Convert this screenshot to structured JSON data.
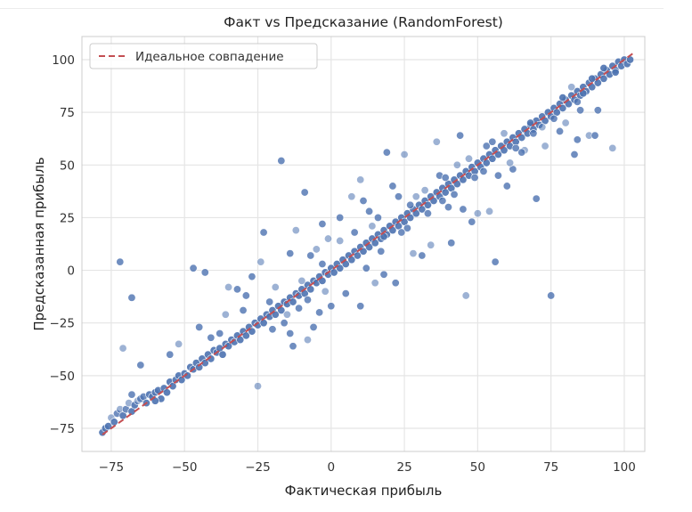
{
  "chart_data": {
    "type": "scatter",
    "title": "Факт vs Предсказание (RandomForest)",
    "xlabel": "Фактическая прибыль",
    "ylabel": "Предсказанная прибыль",
    "xlim": [
      -85,
      107
    ],
    "ylim": [
      -86,
      111
    ],
    "x_ticks": [
      -75,
      -50,
      -25,
      0,
      25,
      50,
      75,
      100
    ],
    "y_ticks": [
      -75,
      -50,
      -25,
      0,
      25,
      50,
      75,
      100
    ],
    "grid": true,
    "legend": {
      "position": "top-left",
      "entries": [
        "Идеальное совпадение"
      ]
    },
    "reference_line": {
      "label": "Идеальное совпадение",
      "from": [
        -78,
        -78
      ],
      "to": [
        103,
        103
      ],
      "style": "dashed",
      "color": "#c44e52"
    },
    "point_color": "#4c72b0",
    "series": [
      {
        "points": [
          [
            -78,
            -77
          ],
          [
            -77,
            -75
          ],
          [
            -76,
            -74
          ],
          [
            -75,
            -70
          ],
          [
            -74,
            -72
          ],
          [
            -73,
            -68
          ],
          [
            -72,
            -66
          ],
          [
            -71,
            -69
          ],
          [
            -70,
            -66
          ],
          [
            -69,
            -63
          ],
          [
            -68,
            -67
          ],
          [
            -67,
            -64
          ],
          [
            -66,
            -62
          ],
          [
            -65,
            -61
          ],
          [
            -64,
            -60
          ],
          [
            -63,
            -63
          ],
          [
            -62,
            -59
          ],
          [
            -61,
            -60
          ],
          [
            -60,
            -58
          ],
          [
            -59,
            -57
          ],
          [
            -58,
            -61
          ],
          [
            -57,
            -56
          ],
          [
            -56,
            -58
          ],
          [
            -55,
            -53
          ],
          [
            -54,
            -55
          ],
          [
            -53,
            -52
          ],
          [
            -52,
            -50
          ],
          [
            -51,
            -52
          ],
          [
            -50,
            -49
          ],
          [
            -49,
            -50
          ],
          [
            -48,
            -46
          ],
          [
            -47,
            -47
          ],
          [
            -46,
            -44
          ],
          [
            -45,
            -46
          ],
          [
            -44,
            -42
          ],
          [
            -43,
            -44
          ],
          [
            -42,
            -40
          ],
          [
            -41,
            -42
          ],
          [
            -40,
            -38
          ],
          [
            -39,
            -39
          ],
          [
            -38,
            -37
          ],
          [
            -37,
            -40
          ],
          [
            -36,
            -35
          ],
          [
            -35,
            -36
          ],
          [
            -34,
            -33
          ],
          [
            -33,
            -34
          ],
          [
            -32,
            -31
          ],
          [
            -31,
            -33
          ],
          [
            -30,
            -29
          ],
          [
            -29,
            -31
          ],
          [
            -28,
            -27
          ],
          [
            -27,
            -29
          ],
          [
            -26,
            -25
          ],
          [
            -25,
            -26
          ],
          [
            -24,
            -23
          ],
          [
            -23,
            -25
          ],
          [
            -22,
            -21
          ],
          [
            -21,
            -22
          ],
          [
            -20,
            -19
          ],
          [
            -19,
            -21
          ],
          [
            -18,
            -17
          ],
          [
            -17,
            -19
          ],
          [
            -16,
            -15
          ],
          [
            -15,
            -16
          ],
          [
            -14,
            -13
          ],
          [
            -13,
            -15
          ],
          [
            -12,
            -11
          ],
          [
            -11,
            -12
          ],
          [
            -10,
            -9
          ],
          [
            -9,
            -11
          ],
          [
            -8,
            -7
          ],
          [
            -7,
            -9
          ],
          [
            -6,
            -5
          ],
          [
            -5,
            -6
          ],
          [
            -4,
            -3
          ],
          [
            -3,
            -5
          ],
          [
            -2,
            -1
          ],
          [
            -1,
            -2
          ],
          [
            0,
            1
          ],
          [
            1,
            -1
          ],
          [
            2,
            3
          ],
          [
            3,
            1
          ],
          [
            4,
            5
          ],
          [
            5,
            3
          ],
          [
            6,
            7
          ],
          [
            7,
            5
          ],
          [
            8,
            9
          ],
          [
            9,
            7
          ],
          [
            10,
            11
          ],
          [
            11,
            9
          ],
          [
            12,
            13
          ],
          [
            13,
            11
          ],
          [
            14,
            15
          ],
          [
            15,
            13
          ],
          [
            16,
            17
          ],
          [
            17,
            15
          ],
          [
            18,
            19
          ],
          [
            19,
            17
          ],
          [
            20,
            21
          ],
          [
            21,
            19
          ],
          [
            22,
            23
          ],
          [
            23,
            21
          ],
          [
            24,
            25
          ],
          [
            25,
            23
          ],
          [
            26,
            27
          ],
          [
            27,
            25
          ],
          [
            28,
            29
          ],
          [
            29,
            27
          ],
          [
            30,
            31
          ],
          [
            31,
            29
          ],
          [
            32,
            33
          ],
          [
            33,
            31
          ],
          [
            34,
            35
          ],
          [
            35,
            33
          ],
          [
            36,
            37
          ],
          [
            37,
            35
          ],
          [
            38,
            39
          ],
          [
            39,
            37
          ],
          [
            40,
            41
          ],
          [
            41,
            39
          ],
          [
            42,
            43
          ],
          [
            43,
            41
          ],
          [
            44,
            45
          ],
          [
            45,
            43
          ],
          [
            46,
            47
          ],
          [
            47,
            45
          ],
          [
            48,
            49
          ],
          [
            49,
            47
          ],
          [
            50,
            51
          ],
          [
            51,
            49
          ],
          [
            52,
            53
          ],
          [
            53,
            51
          ],
          [
            54,
            55
          ],
          [
            55,
            53
          ],
          [
            56,
            57
          ],
          [
            57,
            55
          ],
          [
            58,
            59
          ],
          [
            59,
            57
          ],
          [
            60,
            61
          ],
          [
            61,
            59
          ],
          [
            62,
            63
          ],
          [
            63,
            61
          ],
          [
            64,
            65
          ],
          [
            65,
            63
          ],
          [
            66,
            67
          ],
          [
            67,
            65
          ],
          [
            68,
            69
          ],
          [
            69,
            67
          ],
          [
            70,
            71
          ],
          [
            71,
            69
          ],
          [
            72,
            73
          ],
          [
            73,
            71
          ],
          [
            74,
            75
          ],
          [
            75,
            73
          ],
          [
            76,
            77
          ],
          [
            77,
            75
          ],
          [
            78,
            79
          ],
          [
            79,
            77
          ],
          [
            80,
            81
          ],
          [
            81,
            79
          ],
          [
            82,
            83
          ],
          [
            83,
            81
          ],
          [
            84,
            85
          ],
          [
            85,
            83
          ],
          [
            86,
            87
          ],
          [
            87,
            85
          ],
          [
            88,
            89
          ],
          [
            89,
            87
          ],
          [
            90,
            91
          ],
          [
            91,
            89
          ],
          [
            92,
            93
          ],
          [
            93,
            91
          ],
          [
            94,
            95
          ],
          [
            95,
            93
          ],
          [
            96,
            97
          ],
          [
            97,
            95
          ],
          [
            98,
            99
          ],
          [
            99,
            97
          ],
          [
            100,
            100
          ],
          [
            101,
            98
          ],
          [
            102,
            100
          ],
          [
            -72,
            4
          ],
          [
            -68,
            -13
          ],
          [
            -71,
            -37
          ],
          [
            -65,
            -45
          ],
          [
            -68,
            -59
          ],
          [
            -60,
            -62
          ],
          [
            -47,
            1
          ],
          [
            -43,
            -1
          ],
          [
            -35,
            -8
          ],
          [
            -32,
            -9
          ],
          [
            -29,
            -12
          ],
          [
            -24,
            4
          ],
          [
            -23,
            18
          ],
          [
            -17,
            52
          ],
          [
            -12,
            19
          ],
          [
            -9,
            37
          ],
          [
            -21,
            -15
          ],
          [
            -25,
            -55
          ],
          [
            -14,
            -30
          ],
          [
            -13,
            -36
          ],
          [
            -8,
            -33
          ],
          [
            -6,
            -27
          ],
          [
            -4,
            -20
          ],
          [
            -5,
            10
          ],
          [
            -14,
            8
          ],
          [
            -3,
            22
          ],
          [
            -1,
            15
          ],
          [
            5,
            -11
          ],
          [
            10,
            -17
          ],
          [
            10,
            43
          ],
          [
            16,
            25
          ],
          [
            21,
            40
          ],
          [
            25,
            55
          ],
          [
            19,
            56
          ],
          [
            12,
            1
          ],
          [
            15,
            -6
          ],
          [
            18,
            -2
          ],
          [
            22,
            -6
          ],
          [
            28,
            8
          ],
          [
            26,
            20
          ],
          [
            31,
            7
          ],
          [
            34,
            12
          ],
          [
            37,
            45
          ],
          [
            40,
            30
          ],
          [
            36,
            61
          ],
          [
            41,
            13
          ],
          [
            44,
            64
          ],
          [
            46,
            -12
          ],
          [
            45,
            29
          ],
          [
            48,
            23
          ],
          [
            50,
            27
          ],
          [
            53,
            59
          ],
          [
            56,
            4
          ],
          [
            54,
            28
          ],
          [
            60,
            40
          ],
          [
            62,
            48
          ],
          [
            66,
            57
          ],
          [
            68,
            70
          ],
          [
            70,
            34
          ],
          [
            73,
            59
          ],
          [
            75,
            -12
          ],
          [
            78,
            66
          ],
          [
            80,
            70
          ],
          [
            83,
            55
          ],
          [
            84,
            62
          ],
          [
            88,
            64
          ],
          [
            90,
            64
          ],
          [
            91,
            76
          ],
          [
            96,
            58
          ],
          [
            84,
            80
          ],
          [
            85,
            76
          ],
          [
            7,
            35
          ],
          [
            11,
            33
          ],
          [
            3,
            25
          ],
          [
            -2,
            -10
          ],
          [
            0,
            -17
          ],
          [
            -16,
            -25
          ],
          [
            -19,
            -8
          ],
          [
            -27,
            -3
          ],
          [
            -30,
            -19
          ],
          [
            -36,
            -21
          ],
          [
            -41,
            -32
          ],
          [
            -45,
            -27
          ],
          [
            -52,
            -35
          ],
          [
            -55,
            -40
          ],
          [
            -38,
            -30
          ],
          [
            -10,
            -5
          ],
          [
            -7,
            7
          ],
          [
            -3,
            3
          ],
          [
            3,
            14
          ],
          [
            8,
            18
          ],
          [
            13,
            28
          ],
          [
            18,
            16
          ],
          [
            23,
            35
          ],
          [
            27,
            31
          ],
          [
            32,
            38
          ],
          [
            38,
            33
          ],
          [
            42,
            36
          ],
          [
            47,
            53
          ],
          [
            52,
            47
          ],
          [
            57,
            45
          ],
          [
            61,
            51
          ],
          [
            65,
            56
          ],
          [
            69,
            65
          ],
          [
            72,
            68
          ],
          [
            76,
            72
          ],
          [
            79,
            82
          ],
          [
            82,
            87
          ],
          [
            86,
            84
          ],
          [
            89,
            91
          ],
          [
            93,
            96
          ],
          [
            97,
            94
          ],
          [
            -20,
            -28
          ],
          [
            -15,
            -21
          ],
          [
            -11,
            -18
          ],
          [
            -8,
            -14
          ],
          [
            14,
            21
          ],
          [
            17,
            9
          ],
          [
            24,
            18
          ],
          [
            29,
            35
          ],
          [
            33,
            27
          ],
          [
            39,
            44
          ],
          [
            43,
            50
          ],
          [
            49,
            44
          ],
          [
            55,
            61
          ],
          [
            59,
            65
          ],
          [
            63,
            58
          ]
        ]
      }
    ]
  }
}
